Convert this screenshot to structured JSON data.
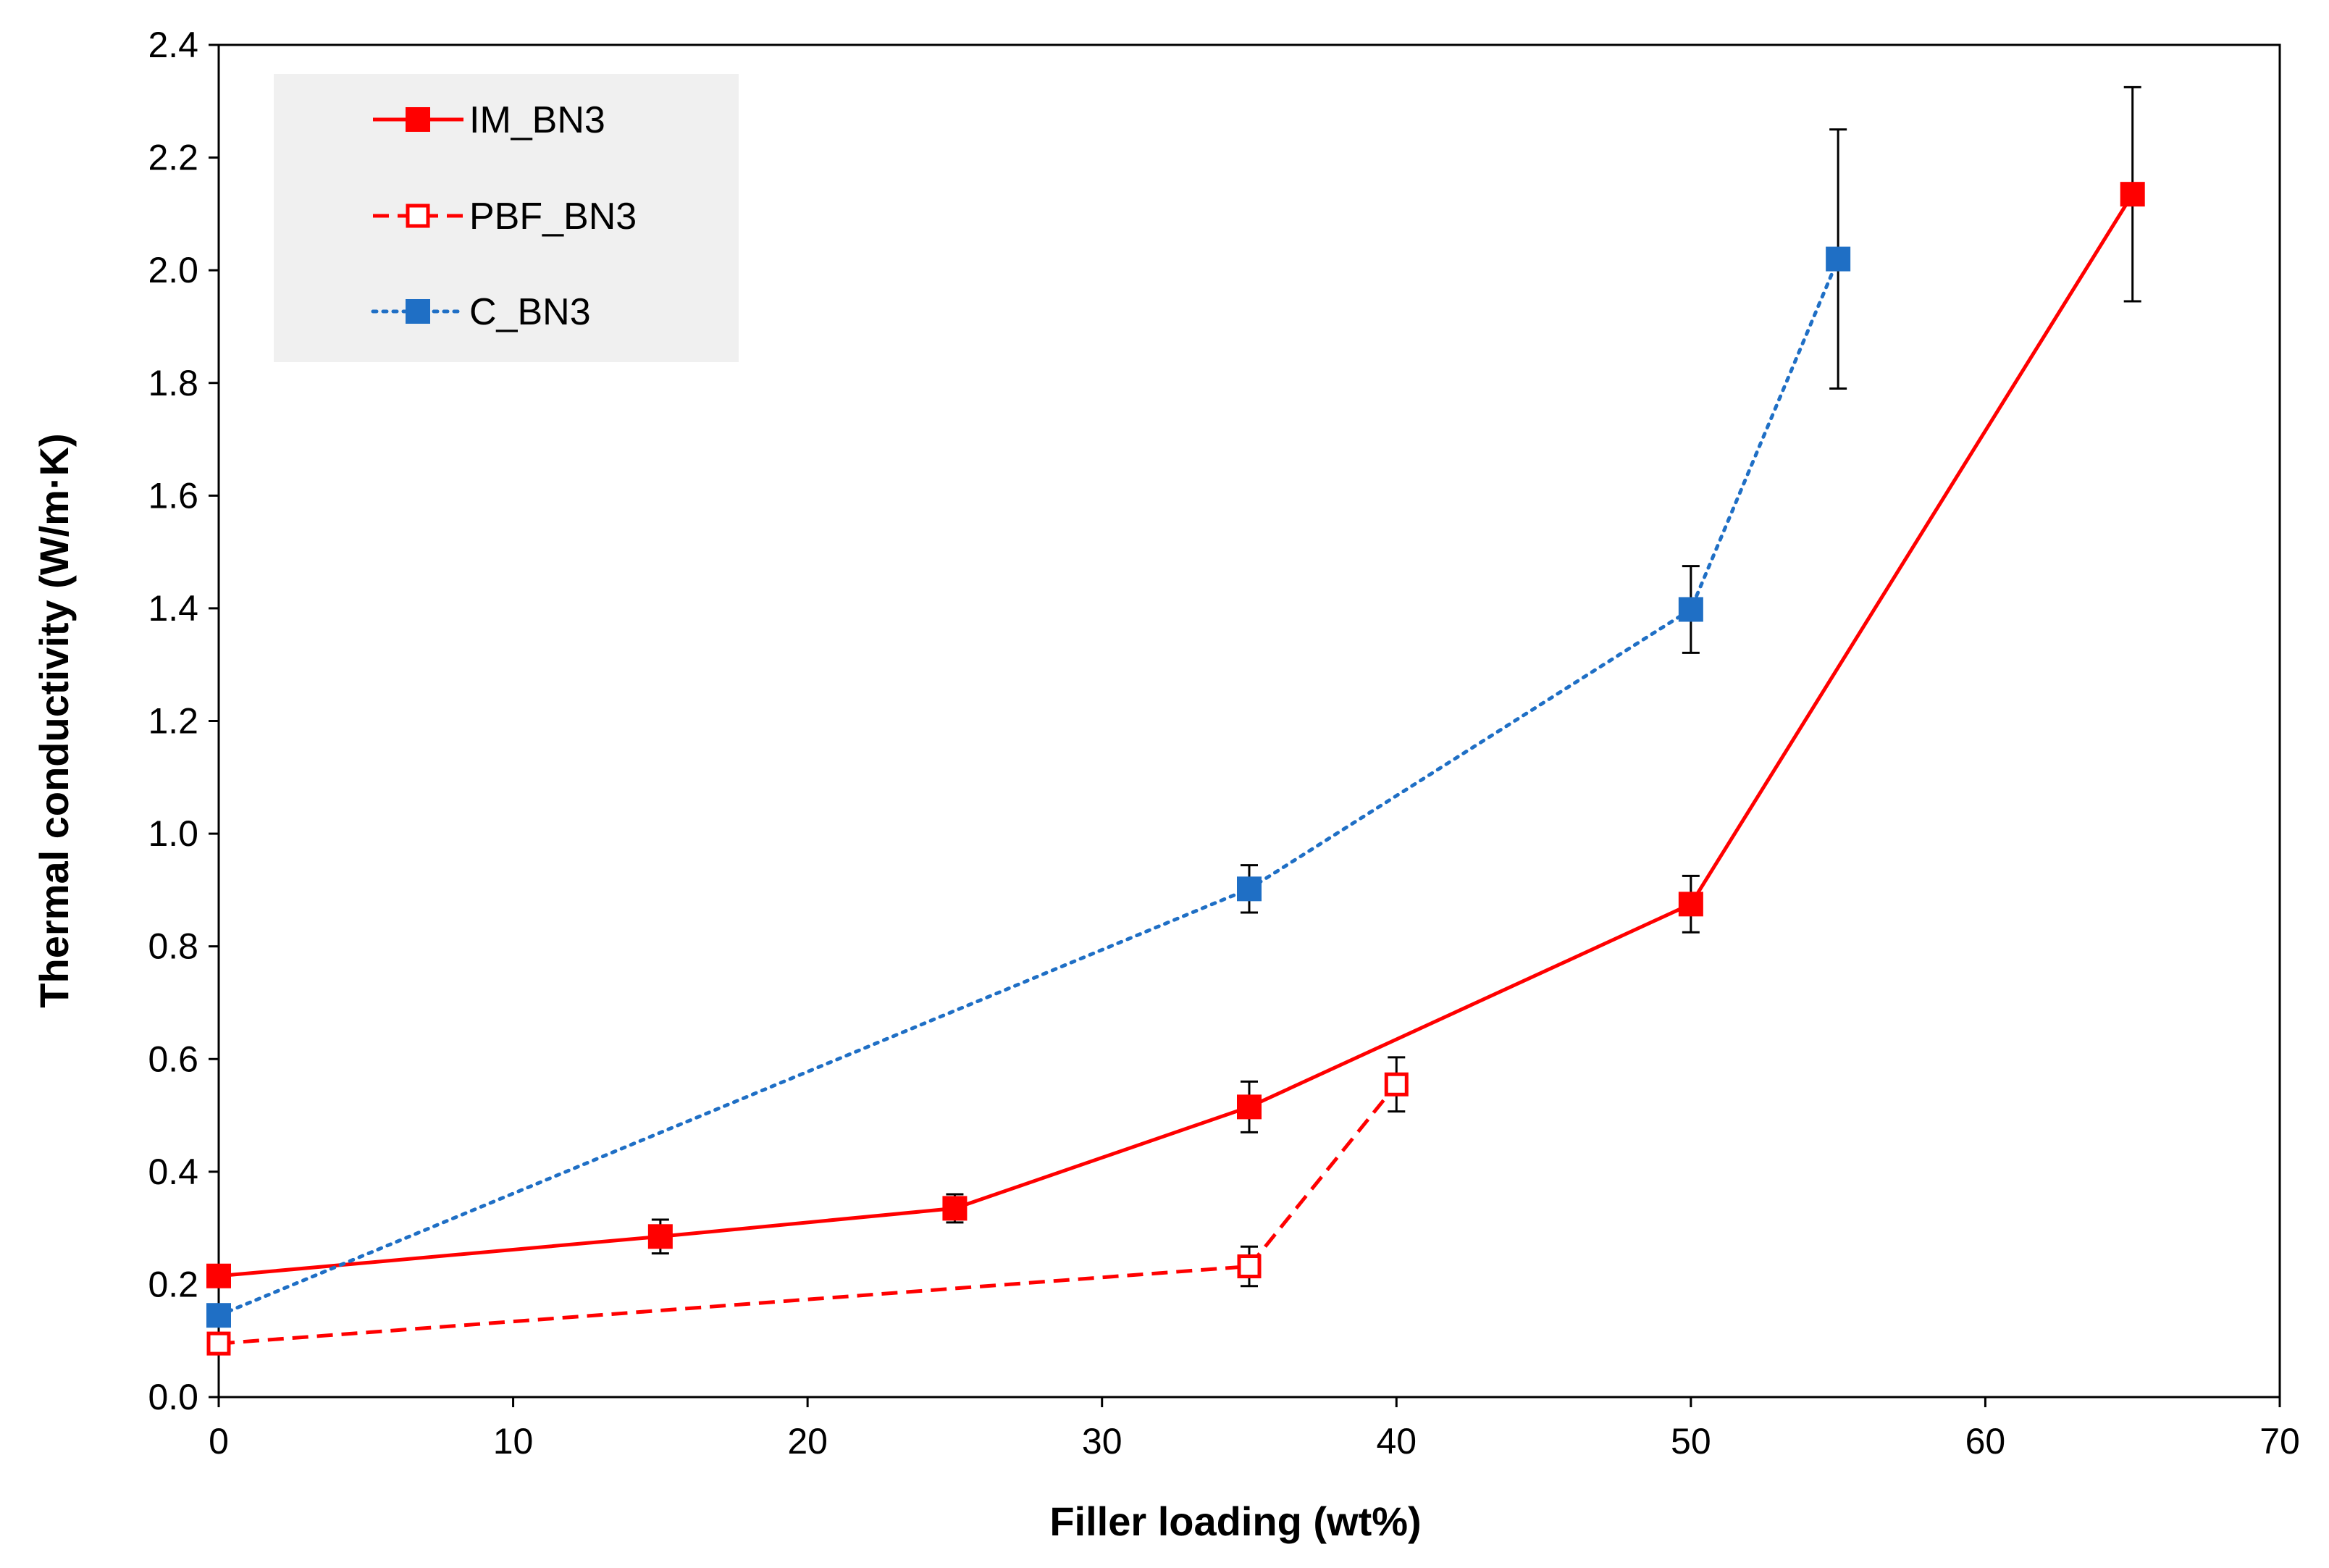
{
  "chart_data": {
    "type": "line",
    "title": "",
    "xlabel": "Filler loading (wt%)",
    "ylabel": "Thermal conductivity (W/m·K)",
    "xlim": [
      0,
      70
    ],
    "ylim": [
      0.0,
      2.4
    ],
    "x_ticks": [
      0,
      10,
      20,
      30,
      40,
      50,
      60,
      70
    ],
    "x_tick_labels": [
      "0",
      "10",
      "20",
      "30",
      "40",
      "50",
      "60",
      "70"
    ],
    "y_ticks": [
      0.0,
      0.2,
      0.4,
      0.6,
      0.8,
      1.0,
      1.2,
      1.4,
      1.6,
      1.8,
      2.0,
      2.2,
      2.4
    ],
    "y_tick_labels": [
      "0.0",
      "0.2",
      "0.4",
      "0.6",
      "0.8",
      "1.0",
      "1.2",
      "1.4",
      "1.6",
      "1.8",
      "2.0",
      "2.2",
      "2.4"
    ],
    "grid": false,
    "legend_position": "top-left",
    "series": [
      {
        "name": "IM_BN3",
        "color": "#ff0000",
        "line_style": "solid",
        "marker": "filled-square",
        "x": [
          0,
          15,
          25,
          35,
          50,
          65
        ],
        "y": [
          0.215,
          0.285,
          0.335,
          0.515,
          0.875,
          2.135
        ],
        "err": [
          0.0,
          0.03,
          0.025,
          0.045,
          0.05,
          0.19
        ]
      },
      {
        "name": "PBF_BN3",
        "color": "#ff0000",
        "line_style": "dashed",
        "marker": "open-square",
        "x": [
          0,
          35,
          40
        ],
        "y": [
          0.095,
          0.232,
          0.555
        ],
        "err": [
          0.0,
          0.035,
          0.048
        ]
      },
      {
        "name": "C_BN3",
        "color": "#1f6fc5",
        "line_style": "dotted",
        "marker": "filled-square",
        "x": [
          0,
          35,
          50,
          55
        ],
        "y": [
          0.145,
          0.902,
          1.398,
          2.02
        ],
        "err": [
          0.0,
          0.042,
          0.077,
          0.23
        ]
      }
    ]
  }
}
